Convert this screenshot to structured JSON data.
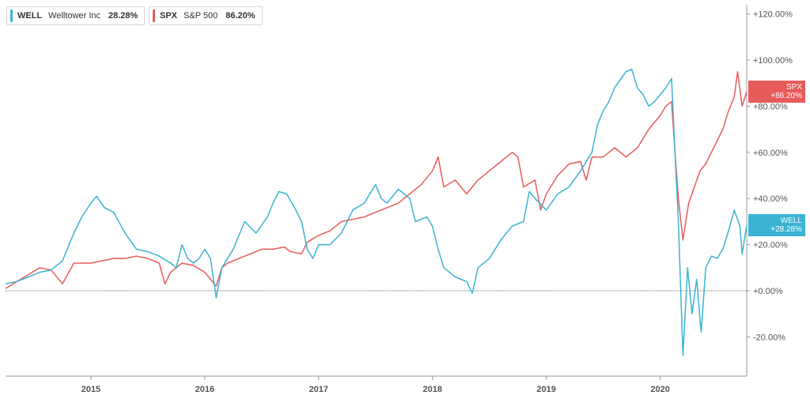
{
  "legend": [
    {
      "symbol": "WELL",
      "name": "Welltower Inc",
      "value": "28.28%",
      "color": "#3bb3d3"
    },
    {
      "symbol": "SPX",
      "name": "S&P 500",
      "value": "86.20%",
      "color": "#e85b5b"
    }
  ],
  "flags": [
    {
      "symbol": "WELL",
      "value": "+28.28%",
      "color": "#3bb3d3",
      "y": 28.28
    },
    {
      "symbol": "SPX",
      "value": "+86.20%",
      "color": "#e85b5b",
      "y": 86.2
    }
  ],
  "chart_data": {
    "type": "line",
    "title": "",
    "xlabel": "",
    "ylabel": "",
    "x_range": [
      2014.25,
      2020.76
    ],
    "ylim": [
      -37,
      124
    ],
    "y_ticks": [
      -20,
      0,
      20,
      40,
      60,
      80,
      100,
      120
    ],
    "y_tick_labels": [
      "-20.00%",
      "+0.00%",
      "+20.00%",
      "+40.00%",
      "+60.00%",
      "+80.00%",
      "+100.00%",
      "+120.00%"
    ],
    "x_ticks": [
      2015,
      2016,
      2017,
      2018,
      2019,
      2020
    ],
    "x_tick_labels": [
      "2015",
      "2016",
      "2017",
      "2018",
      "2019",
      "2020"
    ],
    "grid": false,
    "legend_placement": "top-left",
    "baseline": 0,
    "series": [
      {
        "name": "WELL",
        "color": "#3bb3d3",
        "points": [
          [
            2014.25,
            3
          ],
          [
            2014.35,
            4
          ],
          [
            2014.45,
            6
          ],
          [
            2014.55,
            8
          ],
          [
            2014.65,
            9
          ],
          [
            2014.75,
            13
          ],
          [
            2014.85,
            25
          ],
          [
            2014.92,
            32
          ],
          [
            2015.0,
            38
          ],
          [
            2015.05,
            41
          ],
          [
            2015.12,
            36
          ],
          [
            2015.2,
            34
          ],
          [
            2015.3,
            25
          ],
          [
            2015.4,
            18
          ],
          [
            2015.5,
            17
          ],
          [
            2015.6,
            15
          ],
          [
            2015.7,
            12
          ],
          [
            2015.75,
            10
          ],
          [
            2015.8,
            20
          ],
          [
            2015.85,
            14
          ],
          [
            2015.9,
            12
          ],
          [
            2015.95,
            14
          ],
          [
            2016.0,
            18
          ],
          [
            2016.05,
            14
          ],
          [
            2016.1,
            -3
          ],
          [
            2016.15,
            10
          ],
          [
            2016.25,
            18
          ],
          [
            2016.35,
            30
          ],
          [
            2016.45,
            25
          ],
          [
            2016.55,
            32
          ],
          [
            2016.6,
            38
          ],
          [
            2016.65,
            43
          ],
          [
            2016.72,
            42
          ],
          [
            2016.8,
            35
          ],
          [
            2016.85,
            30
          ],
          [
            2016.9,
            18
          ],
          [
            2016.95,
            14
          ],
          [
            2017.0,
            20
          ],
          [
            2017.1,
            20
          ],
          [
            2017.2,
            25
          ],
          [
            2017.3,
            35
          ],
          [
            2017.4,
            38
          ],
          [
            2017.45,
            42
          ],
          [
            2017.5,
            46
          ],
          [
            2017.55,
            40
          ],
          [
            2017.6,
            38
          ],
          [
            2017.7,
            44
          ],
          [
            2017.8,
            40
          ],
          [
            2017.85,
            30
          ],
          [
            2017.95,
            32
          ],
          [
            2018.0,
            28
          ],
          [
            2018.05,
            18
          ],
          [
            2018.1,
            10
          ],
          [
            2018.2,
            6
          ],
          [
            2018.3,
            4
          ],
          [
            2018.35,
            -1
          ],
          [
            2018.4,
            10
          ],
          [
            2018.5,
            14
          ],
          [
            2018.6,
            22
          ],
          [
            2018.7,
            28
          ],
          [
            2018.8,
            30
          ],
          [
            2018.85,
            43
          ],
          [
            2018.9,
            40
          ],
          [
            2019.0,
            35
          ],
          [
            2019.1,
            42
          ],
          [
            2019.2,
            45
          ],
          [
            2019.3,
            52
          ],
          [
            2019.4,
            60
          ],
          [
            2019.45,
            72
          ],
          [
            2019.5,
            78
          ],
          [
            2019.55,
            82
          ],
          [
            2019.6,
            88
          ],
          [
            2019.7,
            95
          ],
          [
            2019.75,
            96
          ],
          [
            2019.8,
            88
          ],
          [
            2019.85,
            85
          ],
          [
            2019.9,
            80
          ],
          [
            2019.95,
            82
          ],
          [
            2020.0,
            85
          ],
          [
            2020.05,
            88
          ],
          [
            2020.1,
            92
          ],
          [
            2020.13,
            60
          ],
          [
            2020.16,
            30
          ],
          [
            2020.2,
            -28
          ],
          [
            2020.24,
            10
          ],
          [
            2020.28,
            -10
          ],
          [
            2020.32,
            5
          ],
          [
            2020.36,
            -18
          ],
          [
            2020.4,
            10
          ],
          [
            2020.45,
            15
          ],
          [
            2020.5,
            14
          ],
          [
            2020.55,
            18
          ],
          [
            2020.6,
            26
          ],
          [
            2020.65,
            35
          ],
          [
            2020.7,
            28
          ],
          [
            2020.72,
            16
          ],
          [
            2020.76,
            28.28
          ]
        ]
      },
      {
        "name": "SPX",
        "color": "#e85b5b",
        "points": [
          [
            2014.25,
            1
          ],
          [
            2014.35,
            4
          ],
          [
            2014.45,
            7
          ],
          [
            2014.55,
            10
          ],
          [
            2014.65,
            9
          ],
          [
            2014.75,
            3
          ],
          [
            2014.85,
            12
          ],
          [
            2015.0,
            12
          ],
          [
            2015.1,
            13
          ],
          [
            2015.2,
            14
          ],
          [
            2015.3,
            14
          ],
          [
            2015.4,
            15
          ],
          [
            2015.5,
            14
          ],
          [
            2015.6,
            12
          ],
          [
            2015.65,
            3
          ],
          [
            2015.7,
            8
          ],
          [
            2015.8,
            12
          ],
          [
            2015.9,
            11
          ],
          [
            2016.0,
            8
          ],
          [
            2016.1,
            2
          ],
          [
            2016.15,
            10
          ],
          [
            2016.2,
            12
          ],
          [
            2016.3,
            14
          ],
          [
            2016.4,
            16
          ],
          [
            2016.5,
            18
          ],
          [
            2016.6,
            18
          ],
          [
            2016.7,
            19
          ],
          [
            2016.75,
            17
          ],
          [
            2016.85,
            16
          ],
          [
            2016.9,
            21
          ],
          [
            2017.0,
            24
          ],
          [
            2017.1,
            26
          ],
          [
            2017.2,
            30
          ],
          [
            2017.3,
            31
          ],
          [
            2017.4,
            32
          ],
          [
            2017.5,
            34
          ],
          [
            2017.6,
            36
          ],
          [
            2017.7,
            38
          ],
          [
            2017.8,
            42
          ],
          [
            2017.9,
            46
          ],
          [
            2018.0,
            52
          ],
          [
            2018.05,
            58
          ],
          [
            2018.1,
            45
          ],
          [
            2018.2,
            48
          ],
          [
            2018.3,
            42
          ],
          [
            2018.4,
            48
          ],
          [
            2018.5,
            52
          ],
          [
            2018.6,
            56
          ],
          [
            2018.7,
            60
          ],
          [
            2018.75,
            58
          ],
          [
            2018.8,
            45
          ],
          [
            2018.9,
            48
          ],
          [
            2018.95,
            35
          ],
          [
            2019.0,
            42
          ],
          [
            2019.1,
            50
          ],
          [
            2019.2,
            55
          ],
          [
            2019.3,
            56
          ],
          [
            2019.35,
            48
          ],
          [
            2019.4,
            58
          ],
          [
            2019.5,
            58
          ],
          [
            2019.6,
            62
          ],
          [
            2019.7,
            58
          ],
          [
            2019.8,
            62
          ],
          [
            2019.9,
            70
          ],
          [
            2020.0,
            76
          ],
          [
            2020.05,
            80
          ],
          [
            2020.1,
            82
          ],
          [
            2020.13,
            60
          ],
          [
            2020.16,
            40
          ],
          [
            2020.2,
            22
          ],
          [
            2020.25,
            38
          ],
          [
            2020.3,
            45
          ],
          [
            2020.35,
            52
          ],
          [
            2020.4,
            55
          ],
          [
            2020.45,
            60
          ],
          [
            2020.5,
            65
          ],
          [
            2020.55,
            70
          ],
          [
            2020.6,
            78
          ],
          [
            2020.65,
            84
          ],
          [
            2020.68,
            95
          ],
          [
            2020.72,
            80
          ],
          [
            2020.76,
            86.2
          ]
        ]
      }
    ]
  }
}
